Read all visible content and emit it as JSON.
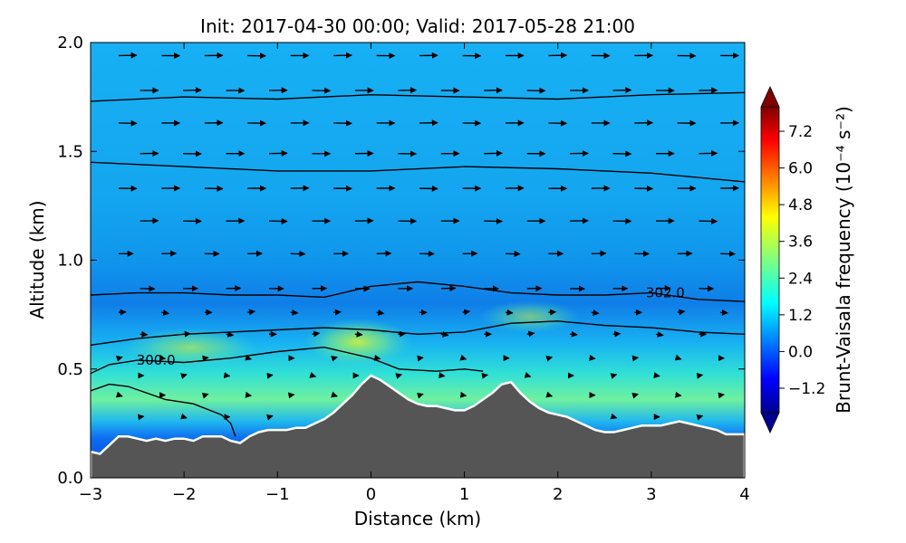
{
  "chart_data": {
    "type": "heatmap",
    "title": "Init: 2017-04-30 00:00; Valid: 2017-05-28 21:00",
    "xlabel": "Distance (km)",
    "ylabel": "Altitude (km)",
    "xlim": [
      -3,
      4
    ],
    "ylim": [
      0,
      2
    ],
    "xticks": [
      -3,
      -2,
      -1,
      0,
      1,
      2,
      3,
      4
    ],
    "xtick_labels": [
      "−3",
      "−2",
      "−1",
      "0",
      "1",
      "2",
      "3",
      "4"
    ],
    "yticks": [
      0.0,
      0.5,
      1.0,
      1.5,
      2.0
    ],
    "ytick_labels": [
      "0.0",
      "0.5",
      "1.0",
      "1.5",
      "2.0"
    ],
    "colorbar": {
      "label": "Brunt-Vaisala frequency (10⁻⁴ s⁻²)",
      "range": [
        -2.0,
        8.0
      ],
      "ticks": [
        7.2,
        6.0,
        4.8,
        3.6,
        2.4,
        1.2,
        0.0,
        -1.2
      ],
      "tick_labels": [
        "7.2",
        "6.0",
        "4.8",
        "3.6",
        "2.4",
        "1.2",
        "0.0",
        "−1.2"
      ],
      "extend": "both"
    },
    "terrain": {
      "x": [
        -3.0,
        -2.9,
        -2.8,
        -2.7,
        -2.6,
        -2.5,
        -2.4,
        -2.3,
        -2.2,
        -2.1,
        -2.0,
        -1.9,
        -1.8,
        -1.7,
        -1.6,
        -1.5,
        -1.4,
        -1.3,
        -1.2,
        -1.1,
        -1.0,
        -0.9,
        -0.8,
        -0.7,
        -0.6,
        -0.5,
        -0.4,
        -0.3,
        -0.2,
        -0.1,
        0.0,
        0.1,
        0.2,
        0.3,
        0.4,
        0.5,
        0.6,
        0.7,
        0.8,
        0.9,
        1.0,
        1.1,
        1.2,
        1.3,
        1.4,
        1.5,
        1.6,
        1.7,
        1.8,
        1.9,
        2.0,
        2.1,
        2.2,
        2.3,
        2.4,
        2.5,
        2.6,
        2.7,
        2.8,
        2.9,
        3.0,
        3.1,
        3.2,
        3.3,
        3.4,
        3.5,
        3.6,
        3.7,
        3.8,
        3.9,
        4.0
      ],
      "z": [
        0.12,
        0.11,
        0.15,
        0.19,
        0.19,
        0.18,
        0.17,
        0.18,
        0.17,
        0.18,
        0.18,
        0.17,
        0.19,
        0.19,
        0.19,
        0.17,
        0.16,
        0.19,
        0.21,
        0.22,
        0.22,
        0.22,
        0.23,
        0.23,
        0.25,
        0.27,
        0.3,
        0.34,
        0.38,
        0.43,
        0.47,
        0.45,
        0.42,
        0.39,
        0.36,
        0.34,
        0.33,
        0.33,
        0.32,
        0.31,
        0.31,
        0.33,
        0.36,
        0.39,
        0.43,
        0.44,
        0.39,
        0.35,
        0.32,
        0.3,
        0.29,
        0.28,
        0.26,
        0.24,
        0.22,
        0.21,
        0.21,
        0.22,
        0.23,
        0.24,
        0.24,
        0.24,
        0.25,
        0.26,
        0.25,
        0.24,
        0.23,
        0.22,
        0.2,
        0.2,
        0.2
      ]
    },
    "isentrope_labels": [
      {
        "text": "300.0",
        "x": -2.3,
        "y": 0.54
      },
      {
        "text": "302.0",
        "x": 3.15,
        "y": 0.85
      }
    ],
    "isentropes": [
      {
        "x": [
          -3,
          -2,
          -1,
          0,
          1,
          2,
          3,
          4
        ],
        "y": [
          1.73,
          1.75,
          1.74,
          1.76,
          1.75,
          1.74,
          1.76,
          1.77
        ]
      },
      {
        "x": [
          -3,
          -2,
          -1,
          0,
          1,
          2,
          3,
          4
        ],
        "y": [
          1.45,
          1.43,
          1.41,
          1.41,
          1.43,
          1.42,
          1.4,
          1.36
        ]
      },
      {
        "x": [
          -3,
          -2.5,
          -2,
          -1.5,
          -1,
          -0.5,
          0,
          0.5,
          1,
          1.5,
          2,
          2.5,
          3,
          3.5,
          4
        ],
        "y": [
          0.84,
          0.85,
          0.85,
          0.84,
          0.84,
          0.83,
          0.88,
          0.9,
          0.88,
          0.85,
          0.84,
          0.84,
          0.85,
          0.82,
          0.81
        ]
      },
      {
        "x": [
          -3,
          -2.5,
          -2,
          -1.5,
          -1,
          -0.5,
          0,
          0.5,
          1,
          1.5,
          2,
          2.5,
          3,
          3.5,
          4
        ],
        "y": [
          0.61,
          0.64,
          0.66,
          0.67,
          0.68,
          0.69,
          0.68,
          0.66,
          0.67,
          0.71,
          0.72,
          0.7,
          0.69,
          0.67,
          0.66
        ]
      },
      {
        "x": [
          -3,
          -2.8,
          -2.5,
          -2.0,
          -1.5,
          -1.0,
          -0.5,
          0,
          0.3,
          0.7,
          1.0,
          1.2
        ],
        "y": [
          0.48,
          0.52,
          0.54,
          0.53,
          0.55,
          0.58,
          0.6,
          0.55,
          0.5,
          0.49,
          0.5,
          0.49
        ]
      },
      {
        "x": [
          -3,
          -2.8,
          -2.6,
          -2.2,
          -1.9,
          -1.6,
          -1.5,
          -1.45
        ],
        "y": [
          0.4,
          0.43,
          0.42,
          0.36,
          0.34,
          0.29,
          0.25,
          0.19
        ]
      }
    ],
    "wind_rows_alt_km": [
      1.94,
      1.78,
      1.63,
      1.49,
      1.33,
      1.18,
      1.03,
      0.87,
      0.76,
      0.66,
      0.55,
      0.47,
      0.38,
      0.28
    ]
  }
}
